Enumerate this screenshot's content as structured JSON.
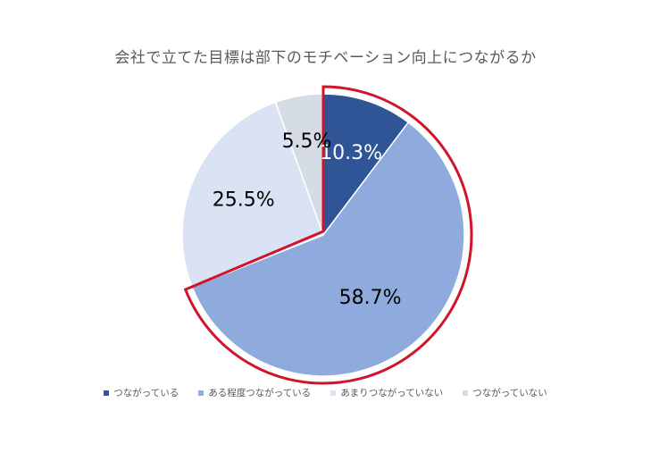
{
  "chart_data": {
    "type": "pie",
    "title": "会社で立てた目標は部下のモチベーション向上につながるか",
    "categories": [
      "つながっている",
      "ある程度つながっている",
      "あまりつながっていない",
      "つながっていない"
    ],
    "values": [
      10.3,
      58.7,
      25.5,
      5.5
    ],
    "labels": [
      "10.3%",
      "58.7%",
      "25.5%",
      "5.5%"
    ],
    "colors": [
      "#2f5597",
      "#8faadc",
      "#dae3f3",
      "#d6dce5"
    ],
    "label_colors": [
      "#ffffff",
      "#000000",
      "#000000",
      "#000000"
    ],
    "highlight_color": "#d0142c",
    "highlighted_categories": [
      "つながっている",
      "ある程度つながっている"
    ],
    "legend_position": "bottom"
  }
}
